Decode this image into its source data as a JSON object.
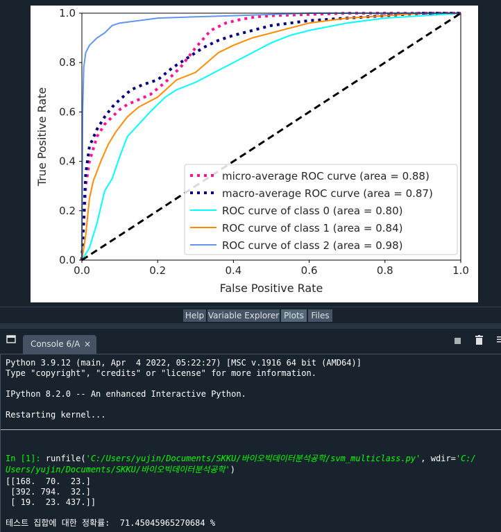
{
  "plot_tabs": [
    "Help",
    "Variable Explorer",
    "Plots",
    "Files"
  ],
  "console": {
    "tab_label": "Console 6/A",
    "close_glyph": "×",
    "lines": {
      "l1": "Python 3.9.12 (main, Apr  4 2022, 05:22:27) [MSC v.1916 64 bit (AMD64)]",
      "l2": "Type \"copyright\", \"credits\" or \"license\" for more information.",
      "l3": "IPython 8.2.0 -- An enhanced Interactive Python.",
      "l4": "Restarting kernel...",
      "prompt": "In [1]:",
      "cmd_a": " runfile(",
      "cmd_str1": "'C:/Users/yujin/Documents/SKKU/바이오빅데이터분석공학/svm_multiclass.py'",
      "cmd_b": ", wdir=",
      "cmd_str2a": "'C:/",
      "cmd_str2b": "Users/yujin/Documents/SKKU/바이오빅데이터분석공학'",
      "cmd_c": ")",
      "m1": "[[168.  70.  23.]",
      "m2": " [392. 794.  32.]",
      "m3": " [ 19.  23. 437.]]",
      "result": "테스트 집합에 대한 정확률:  71.45045965270684 %"
    }
  },
  "chart_data": {
    "type": "line",
    "xlabel": "False Positive Rate",
    "ylabel": "True Positive Rate",
    "xlim": [
      0.0,
      1.0
    ],
    "ylim": [
      0.0,
      1.0
    ],
    "xticks": [
      "0.0",
      "0.2",
      "0.4",
      "0.6",
      "0.8",
      "1.0"
    ],
    "yticks": [
      "0.0",
      "0.2",
      "0.4",
      "0.6",
      "0.8",
      "1.0"
    ],
    "legend_position": "lower-right",
    "series": [
      {
        "name": "micro-average ROC curve (area = 0.88)",
        "color": "#ff1493",
        "style": "dotted",
        "x": [
          0,
          0.01,
          0.02,
          0.04,
          0.06,
          0.08,
          0.1,
          0.12,
          0.15,
          0.18,
          0.22,
          0.26,
          0.3,
          0.34,
          0.38,
          0.42,
          0.46,
          0.5,
          0.6,
          0.7,
          0.8,
          0.9,
          1.0
        ],
        "y": [
          0,
          0.3,
          0.4,
          0.5,
          0.55,
          0.58,
          0.61,
          0.63,
          0.65,
          0.67,
          0.72,
          0.78,
          0.86,
          0.93,
          0.96,
          0.975,
          0.985,
          0.99,
          0.995,
          1.0,
          1.0,
          1.0,
          1.0
        ]
      },
      {
        "name": "macro-average ROC curve (area = 0.87)",
        "color": "#000080",
        "style": "dotted",
        "x": [
          0,
          0.01,
          0.02,
          0.04,
          0.06,
          0.08,
          0.1,
          0.13,
          0.16,
          0.2,
          0.24,
          0.28,
          0.32,
          0.36,
          0.4,
          0.45,
          0.5,
          0.6,
          0.7,
          0.8,
          0.9,
          1.0
        ],
        "y": [
          0,
          0.35,
          0.46,
          0.53,
          0.58,
          0.62,
          0.65,
          0.69,
          0.71,
          0.73,
          0.78,
          0.82,
          0.86,
          0.89,
          0.91,
          0.93,
          0.95,
          0.97,
          0.98,
          0.99,
          1.0,
          1.0
        ]
      },
      {
        "name": "ROC curve of class 0 (area = 0.80)",
        "color": "#00ffff",
        "style": "solid",
        "x": [
          0,
          0.02,
          0.04,
          0.06,
          0.08,
          0.1,
          0.12,
          0.15,
          0.18,
          0.2,
          0.22,
          0.25,
          0.3,
          0.35,
          0.4,
          0.45,
          0.5,
          0.55,
          0.6,
          0.7,
          0.8,
          0.9,
          1.0
        ],
        "y": [
          0,
          0.05,
          0.15,
          0.28,
          0.33,
          0.42,
          0.5,
          0.55,
          0.6,
          0.63,
          0.66,
          0.69,
          0.72,
          0.76,
          0.8,
          0.84,
          0.88,
          0.91,
          0.93,
          0.96,
          0.98,
          0.99,
          1.0
        ]
      },
      {
        "name": "ROC curve of class 1 (area = 0.84)",
        "color": "#ff8c00",
        "style": "solid",
        "x": [
          0,
          0.01,
          0.02,
          0.03,
          0.05,
          0.07,
          0.09,
          0.12,
          0.15,
          0.2,
          0.25,
          0.3,
          0.33,
          0.36,
          0.4,
          0.45,
          0.5,
          0.6,
          0.7,
          0.8,
          0.9,
          1.0
        ],
        "y": [
          0,
          0.1,
          0.25,
          0.32,
          0.4,
          0.47,
          0.52,
          0.58,
          0.62,
          0.66,
          0.73,
          0.76,
          0.8,
          0.84,
          0.87,
          0.9,
          0.92,
          0.96,
          0.98,
          0.99,
          1.0,
          1.0
        ]
      },
      {
        "name": "ROC curve of class 2 (area = 0.98)",
        "color": "#6495ed",
        "style": "solid",
        "x": [
          0,
          0.002,
          0.005,
          0.01,
          0.02,
          0.04,
          0.06,
          0.08,
          0.1,
          0.15,
          0.2,
          0.3,
          0.4,
          0.5,
          0.6,
          0.8,
          1.0
        ],
        "y": [
          0,
          0.6,
          0.78,
          0.84,
          0.87,
          0.9,
          0.92,
          0.95,
          0.96,
          0.97,
          0.98,
          0.985,
          0.99,
          0.995,
          1.0,
          1.0,
          1.0
        ]
      }
    ],
    "reference_line": {
      "x": [
        0,
        1
      ],
      "y": [
        0,
        1
      ],
      "color": "#000000",
      "style": "dashed"
    }
  }
}
